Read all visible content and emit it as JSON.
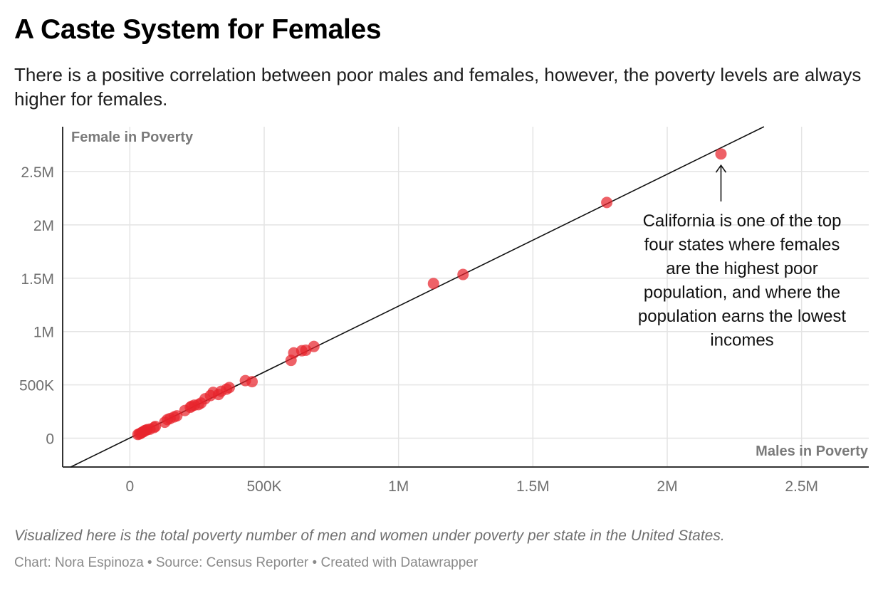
{
  "header": {
    "title": "A Caste System for Females",
    "subtitle": "There is a positive correlation between poor males and females, however, the poverty levels are always higher for females."
  },
  "chart_data": {
    "type": "scatter",
    "title": "A Caste System for Females",
    "subtitle": "There is a positive correlation between poor males and females, however, the poverty levels are always higher for females.",
    "xlabel": "Males in Poverty",
    "ylabel": "Female in Poverty",
    "xlim": [
      -250000,
      2750000
    ],
    "ylim": [
      -270000,
      2920000
    ],
    "x_ticks": [
      0,
      500000,
      1000000,
      1500000,
      2000000,
      2500000
    ],
    "x_tick_labels": [
      "0",
      "500K",
      "1M",
      "1.5M",
      "2M",
      "2.5M"
    ],
    "y_ticks": [
      0,
      500000,
      1000000,
      1500000,
      2000000,
      2500000
    ],
    "y_tick_labels": [
      "0",
      "500K",
      "1M",
      "1.5M",
      "2M",
      "2.5M"
    ],
    "grid": true,
    "point_color": "#e8242c",
    "trendline": {
      "x": [
        -220000,
        2360000
      ],
      "y": [
        -270000,
        2920000
      ]
    },
    "series": [
      {
        "x": [
          30000,
          35000,
          40000,
          45000,
          50000,
          55000,
          60000,
          65000,
          75000,
          90000,
          95000,
          130000,
          140000,
          150000,
          165000,
          175000,
          205000,
          225000,
          230000,
          240000,
          255000,
          265000,
          280000,
          300000,
          310000,
          330000,
          340000,
          360000,
          370000,
          430000,
          455000,
          600000,
          610000,
          640000,
          655000,
          685000,
          1130000,
          1240000,
          1775000,
          2200000
        ],
        "y": [
          35000,
          40000,
          45000,
          55000,
          60000,
          70000,
          75000,
          80000,
          85000,
          100000,
          110000,
          150000,
          175000,
          185000,
          200000,
          210000,
          260000,
          290000,
          300000,
          310000,
          315000,
          330000,
          370000,
          400000,
          430000,
          410000,
          440000,
          460000,
          475000,
          540000,
          530000,
          730000,
          800000,
          820000,
          825000,
          860000,
          1450000,
          1535000,
          2210000,
          2665000
        ]
      }
    ],
    "annotations": [
      {
        "text": "California is one of the top four states where females are the highest poor population, and where the population earns the lowest incomes",
        "lines": [
          "California is one of the top",
          "four states where females",
          "are the highest poor",
          "population, and where the",
          "population earns the lowest",
          "incomes"
        ]
      }
    ]
  },
  "footer": {
    "notes": "Visualized here is the total poverty number of men and women under poverty per state in the United States.",
    "chart_credit": "Chart: Nora Espinoza",
    "source": "Source: Census Reporter",
    "created_with": "Created with Datawrapper",
    "separator": " • "
  }
}
